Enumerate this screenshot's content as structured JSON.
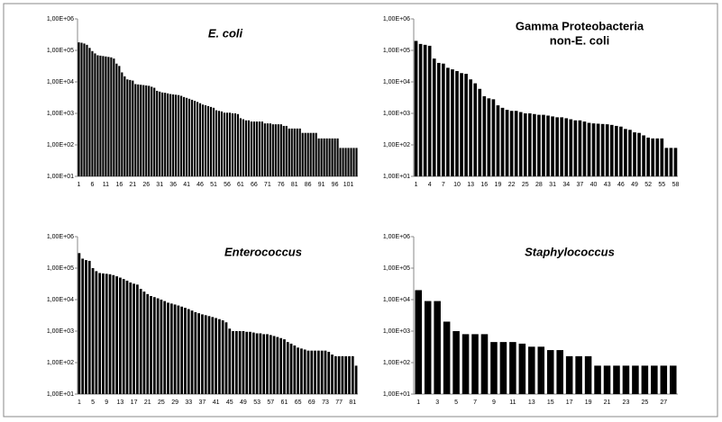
{
  "chart_data": [
    {
      "type": "bar",
      "title": "E. coli",
      "italic": true,
      "color": "#000000",
      "log": true,
      "ylim": [
        10,
        1000000
      ],
      "yticks": [
        {
          "value": 10,
          "label": "1,00E+01"
        },
        {
          "value": 100,
          "label": "1,00E+02"
        },
        {
          "value": 1000,
          "label": "1,00E+03"
        },
        {
          "value": 10000,
          "label": "1,00E+04"
        },
        {
          "value": 100000,
          "label": "1,00E+05"
        },
        {
          "value": 1000000,
          "label": "1,00E+06"
        }
      ],
      "categories": [
        "1",
        null,
        null,
        null,
        null,
        "6",
        null,
        null,
        null,
        null,
        "11",
        null,
        null,
        null,
        null,
        "16",
        null,
        null,
        null,
        null,
        "21",
        null,
        null,
        null,
        null,
        "26",
        null,
        null,
        null,
        null,
        "31",
        null,
        null,
        null,
        null,
        "36",
        null,
        null,
        null,
        null,
        "41",
        null,
        null,
        null,
        null,
        "46",
        null,
        null,
        null,
        null,
        "51",
        null,
        null,
        null,
        null,
        "56",
        null,
        null,
        null,
        null,
        "61",
        null,
        null,
        null,
        null,
        "66",
        null,
        null,
        null,
        null,
        "71",
        null,
        null,
        null,
        null,
        "76",
        null,
        null,
        null,
        null,
        "81",
        null,
        null,
        null,
        null,
        "86",
        null,
        null,
        null,
        null,
        "91",
        null,
        null,
        null,
        null,
        "96",
        null,
        null,
        null,
        null,
        "101",
        null,
        null,
        null
      ],
      "values": [
        180000,
        175000,
        165000,
        150000,
        120000,
        95000,
        80000,
        70000,
        68000,
        66000,
        64000,
        62000,
        60000,
        55000,
        38000,
        32000,
        20000,
        15000,
        12000,
        11500,
        11000,
        8500,
        8300,
        8100,
        7900,
        7700,
        7500,
        7000,
        6500,
        5200,
        4900,
        4600,
        4500,
        4300,
        4100,
        4000,
        3900,
        3800,
        3600,
        3300,
        3100,
        2900,
        2700,
        2500,
        2300,
        2100,
        1900,
        1800,
        1700,
        1600,
        1500,
        1250,
        1200,
        1150,
        1050,
        1050,
        1050,
        1000,
        1000,
        950,
        700,
        650,
        600,
        600,
        550,
        550,
        550,
        550,
        550,
        480,
        480,
        480,
        450,
        450,
        450,
        450,
        400,
        400,
        330,
        330,
        330,
        330,
        330,
        240,
        240,
        240,
        240,
        240,
        240,
        160,
        160,
        160,
        160,
        160,
        160,
        160,
        160,
        80,
        80,
        80,
        80,
        80,
        80,
        80
      ]
    },
    {
      "type": "bar",
      "title": [
        "Gamma Proteobacteria",
        "non-E. coli"
      ],
      "italic": false,
      "color": "#000000",
      "log": true,
      "ylim": [
        10,
        1000000
      ],
      "yticks": [
        {
          "value": 10,
          "label": "1,00E+01"
        },
        {
          "value": 100,
          "label": "1,00E+02"
        },
        {
          "value": 1000,
          "label": "1,00E+03"
        },
        {
          "value": 10000,
          "label": "1,00E+04"
        },
        {
          "value": 100000,
          "label": "1,00E+05"
        },
        {
          "value": 1000000,
          "label": "1,00E+06"
        }
      ],
      "categories": [
        "1",
        null,
        null,
        "4",
        null,
        null,
        "7",
        null,
        null,
        "10",
        null,
        null,
        "13",
        null,
        null,
        "16",
        null,
        null,
        "19",
        null,
        null,
        "22",
        null,
        null,
        "25",
        null,
        null,
        "28",
        null,
        null,
        "31",
        null,
        null,
        "34",
        null,
        null,
        "37",
        null,
        null,
        "40",
        null,
        null,
        "43",
        null,
        null,
        "46",
        null,
        null,
        "49",
        null,
        null,
        "52",
        null,
        null,
        "55",
        null,
        null,
        "58"
      ],
      "values": [
        200000,
        160000,
        150000,
        140000,
        55000,
        40000,
        38000,
        28000,
        25000,
        22000,
        19000,
        18000,
        12000,
        9000,
        6000,
        3500,
        3000,
        2800,
        1800,
        1500,
        1300,
        1200,
        1200,
        1100,
        1000,
        1000,
        950,
        900,
        900,
        850,
        800,
        750,
        750,
        700,
        650,
        600,
        600,
        550,
        500,
        480,
        470,
        460,
        450,
        430,
        400,
        380,
        320,
        300,
        250,
        240,
        200,
        170,
        160,
        160,
        160,
        80,
        80,
        80
      ]
    },
    {
      "type": "bar",
      "title": "Enterococcus",
      "italic": true,
      "color": "#000000",
      "log": true,
      "ylim": [
        10,
        1000000
      ],
      "yticks": [
        {
          "value": 10,
          "label": "1,00E+01"
        },
        {
          "value": 100,
          "label": "1,00E+02"
        },
        {
          "value": 1000,
          "label": "1,00E+03"
        },
        {
          "value": 10000,
          "label": "1,00E+04"
        },
        {
          "value": 100000,
          "label": "1,00E+05"
        },
        {
          "value": 1000000,
          "label": "1,00E+06"
        }
      ],
      "categories": [
        "1",
        null,
        null,
        null,
        "5",
        null,
        null,
        null,
        "9",
        null,
        null,
        null,
        "13",
        null,
        null,
        null,
        "17",
        null,
        null,
        null,
        "21",
        null,
        null,
        null,
        "25",
        null,
        null,
        null,
        "29",
        null,
        null,
        null,
        "33",
        null,
        null,
        null,
        "37",
        null,
        null,
        null,
        "41",
        null,
        null,
        null,
        "45",
        null,
        null,
        null,
        "49",
        null,
        null,
        null,
        "53",
        null,
        null,
        null,
        "57",
        null,
        null,
        null,
        "61",
        null,
        null,
        null,
        "65",
        null,
        null,
        null,
        "69",
        null,
        null,
        null,
        "73",
        null,
        null,
        null,
        "77",
        null,
        null,
        null,
        "81",
        null
      ],
      "values": [
        300000,
        200000,
        180000,
        170000,
        100000,
        80000,
        70000,
        68000,
        66000,
        64000,
        60000,
        55000,
        50000,
        45000,
        40000,
        35000,
        32000,
        30000,
        22000,
        18000,
        15000,
        13000,
        12000,
        11000,
        10000,
        9000,
        8000,
        7500,
        7000,
        6500,
        6000,
        5500,
        5000,
        4500,
        4000,
        3700,
        3400,
        3200,
        3000,
        2800,
        2600,
        2400,
        2200,
        1900,
        1200,
        1000,
        1000,
        1000,
        1000,
        950,
        950,
        900,
        850,
        850,
        800,
        800,
        750,
        700,
        650,
        600,
        550,
        450,
        400,
        350,
        300,
        280,
        260,
        240,
        240,
        240,
        240,
        240,
        240,
        220,
        180,
        160,
        160,
        160,
        160,
        160,
        160,
        80
      ]
    },
    {
      "type": "bar",
      "title": "Staphylococcus",
      "italic": true,
      "color": "#000000",
      "log": true,
      "ylim": [
        10,
        1000000
      ],
      "yticks": [
        {
          "value": 10,
          "label": "1,00E+01"
        },
        {
          "value": 100,
          "label": "1,00E+02"
        },
        {
          "value": 1000,
          "label": "1,00E+03"
        },
        {
          "value": 10000,
          "label": "1,00E+04"
        },
        {
          "value": 100000,
          "label": "1,00E+05"
        },
        {
          "value": 1000000,
          "label": "1,00E+06"
        }
      ],
      "categories": [
        "1",
        null,
        "3",
        null,
        "5",
        null,
        "7",
        null,
        "9",
        null,
        "11",
        null,
        "13",
        null,
        "15",
        null,
        "17",
        null,
        "19",
        null,
        "21",
        null,
        "23",
        null,
        "25",
        null,
        "27",
        null
      ],
      "values": [
        20000,
        9000,
        9000,
        2000,
        1000,
        800,
        800,
        800,
        450,
        450,
        450,
        400,
        320,
        320,
        250,
        250,
        160,
        160,
        160,
        80,
        80,
        80,
        80,
        80,
        80,
        80,
        80,
        80
      ]
    }
  ]
}
